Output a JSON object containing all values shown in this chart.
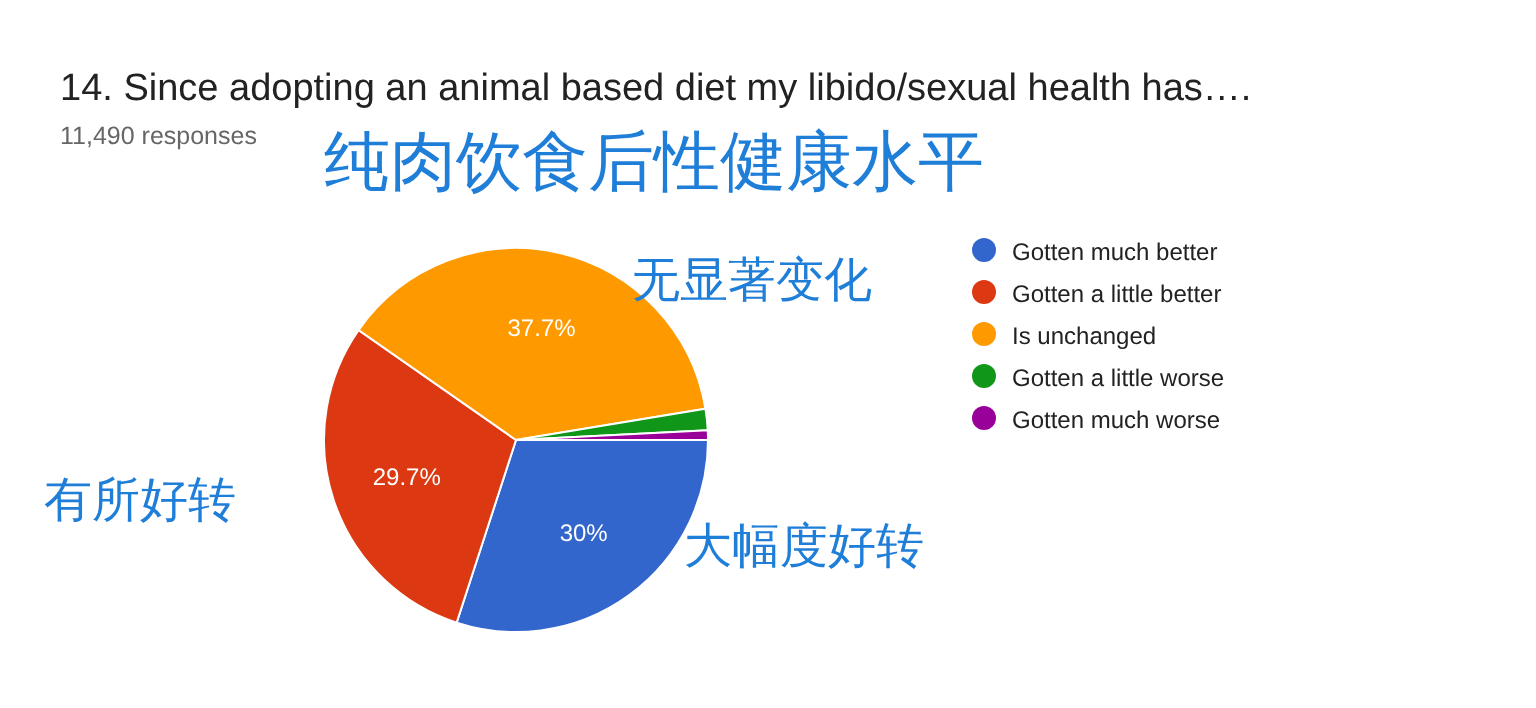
{
  "chart_data": {
    "type": "pie",
    "title": "14. Since adopting an animal based diet my libido/sexual health has….",
    "subtitle": "11,490 responses",
    "categories": [
      "Gotten much better",
      "Gotten a little better",
      "Is unchanged",
      "Gotten a little worse",
      "Gotten much worse"
    ],
    "values": [
      30,
      29.7,
      37.7,
      1.8,
      0.8
    ],
    "colors": [
      "#3366cc",
      "#dc3912",
      "#ff9900",
      "#109618",
      "#990099"
    ],
    "value_labels": [
      "30%",
      "29.7%",
      "37.7%",
      null,
      null
    ],
    "legend": "right",
    "annotations": [
      "纯肉饮食后性健康水平",
      "无显著变化",
      "有所好转",
      "大幅度好转"
    ]
  }
}
